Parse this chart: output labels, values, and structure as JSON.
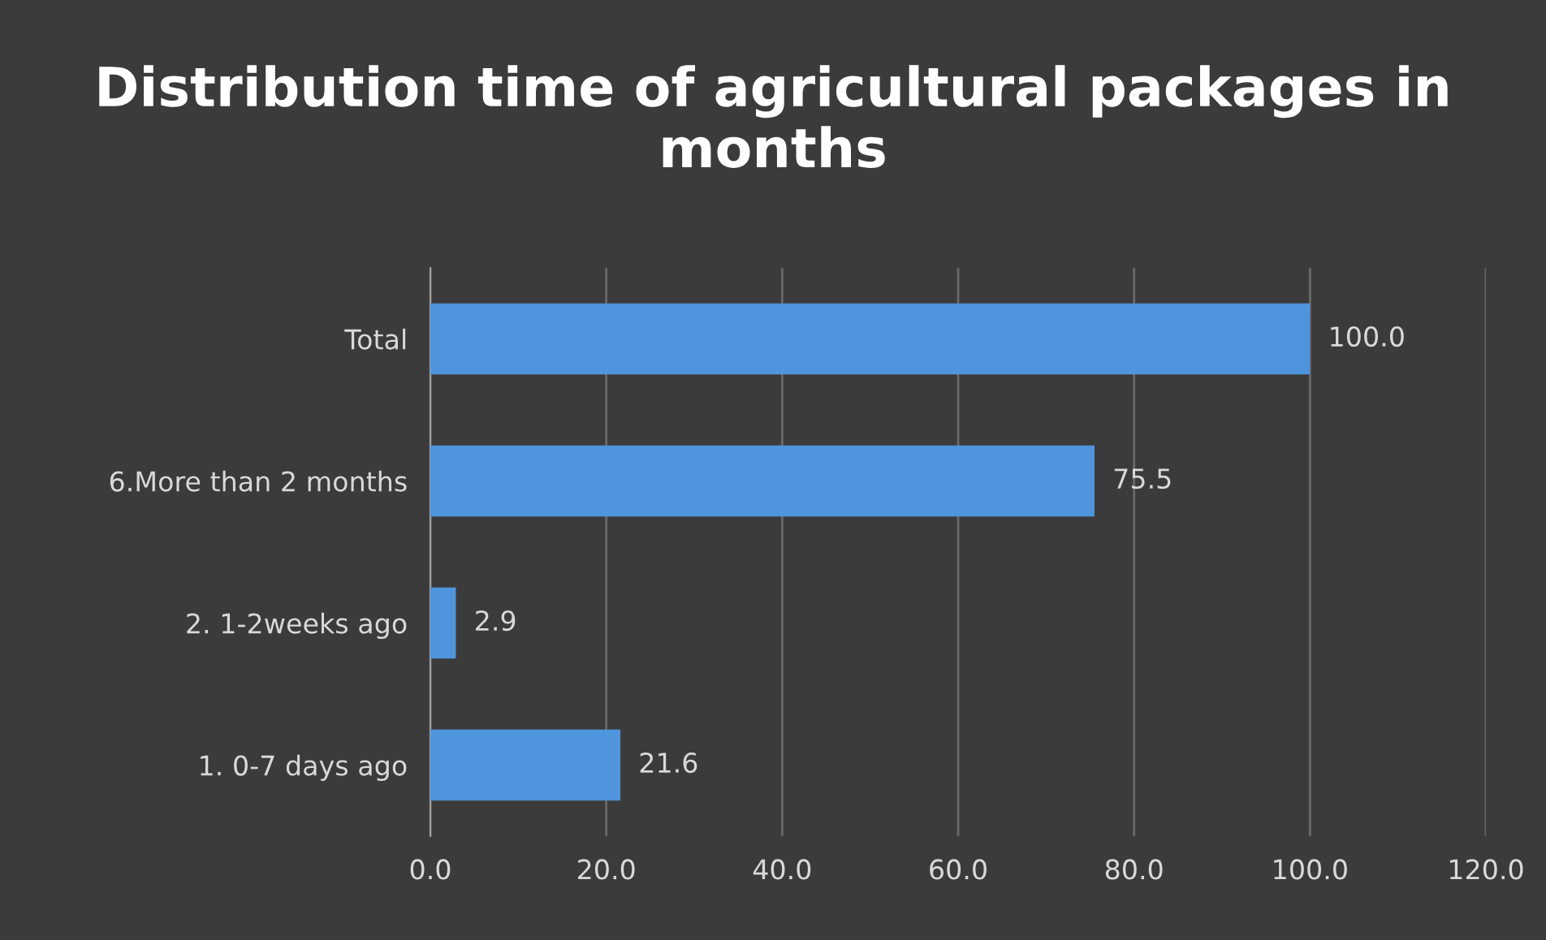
{
  "chart_data": {
    "type": "bar",
    "orientation": "horizontal",
    "title": "Distribution time of agricultural packages in months",
    "categories": [
      "Total",
      "6.More than 2 months",
      "2. 1-2weeks ago",
      "1. 0-7 days ago"
    ],
    "values": [
      100.0,
      75.5,
      2.9,
      21.6
    ],
    "value_labels": [
      "100.0",
      "75.5",
      "2.9",
      "21.6"
    ],
    "color": "#4f95dd",
    "xlim": [
      0,
      120
    ],
    "xticks": [
      {
        "value": 0,
        "label": "0.0"
      },
      {
        "value": 20,
        "label": "20.0"
      },
      {
        "value": 40,
        "label": "40.0"
      },
      {
        "value": 60,
        "label": "60.0"
      },
      {
        "value": 80,
        "label": "80.0"
      },
      {
        "value": 100,
        "label": "100.0"
      },
      {
        "value": 120,
        "label": "120.0"
      }
    ],
    "grid": "x"
  }
}
